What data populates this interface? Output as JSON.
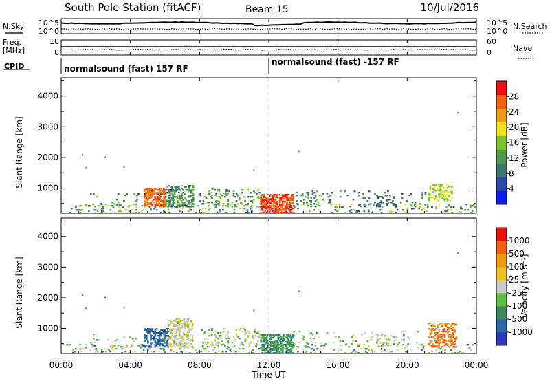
{
  "header": {
    "station": "South Pole Station (fitACF)",
    "beam": "Beam 15",
    "date": "10/Jul/2016"
  },
  "summary_panels": {
    "nsky": {
      "label": "N.Sky",
      "ticks": [
        "10^5",
        "10^0"
      ]
    },
    "nsearch": {
      "label": "N.Search",
      "ticks": [
        "10^5",
        "10^0"
      ]
    },
    "freq": {
      "label_line1": "Freq.",
      "label_line2": "[MHz]",
      "ticks": [
        "18",
        "8"
      ]
    },
    "nave": {
      "label": "Nave",
      "ticks": [
        "60",
        "0"
      ]
    },
    "cpid": {
      "label": "CPID",
      "segments": [
        {
          "text": "normalsound (fast) 157 RF",
          "start_hour": 0
        },
        {
          "text": "normalsound (fast) -157 RF",
          "start_hour": 12
        }
      ]
    }
  },
  "chart_data": [
    {
      "type": "heatmap",
      "name": "power",
      "ylabel": "Slant Range [km]",
      "x_range_hours": [
        0,
        24
      ],
      "ylim": [
        180,
        4600
      ],
      "yticks": [
        1000,
        2000,
        3000,
        4000
      ],
      "colorbar": {
        "label": "Power [dB]",
        "range": [
          0,
          32
        ],
        "ticks": [
          "4",
          "8",
          "12",
          "16",
          "20",
          "24",
          "28"
        ],
        "colors": [
          "#0a1ef0",
          "#2a4aaa",
          "#3a7a6a",
          "#4a9a48",
          "#7ac430",
          "#f0e020",
          "#f09a10",
          "#f06010",
          "#f01010"
        ]
      },
      "clusters": [
        {
          "t": [
            0.3,
            23.9
          ],
          "r": [
            180,
            480
          ],
          "d": 0.12,
          "v": [
            4,
            22
          ]
        },
        {
          "t": [
            4.8,
            6.0
          ],
          "r": [
            380,
            980
          ],
          "d": 0.62,
          "v": [
            22,
            30
          ]
        },
        {
          "t": [
            6.0,
            7.6
          ],
          "r": [
            380,
            1100
          ],
          "d": 0.42,
          "v": [
            6,
            16
          ]
        },
        {
          "t": [
            11.5,
            13.4
          ],
          "r": [
            180,
            780
          ],
          "d": 0.62,
          "v": [
            24,
            31
          ]
        },
        {
          "t": [
            8.0,
            11.5
          ],
          "r": [
            380,
            1000
          ],
          "d": 0.18,
          "v": [
            6,
            18
          ]
        },
        {
          "t": [
            13.4,
            15.5
          ],
          "r": [
            380,
            900
          ],
          "d": 0.16,
          "v": [
            6,
            16
          ]
        },
        {
          "t": [
            18.2,
            19.3
          ],
          "r": [
            380,
            780
          ],
          "d": 0.22,
          "v": [
            4,
            12
          ]
        },
        {
          "t": [
            21.2,
            22.6
          ],
          "r": [
            580,
            1100
          ],
          "d": 0.35,
          "v": [
            14,
            20
          ]
        },
        {
          "t": [
            1.5,
            4.5
          ],
          "r": [
            380,
            800
          ],
          "d": 0.06,
          "v": [
            4,
            16
          ]
        },
        {
          "t": [
            15.5,
            21.0
          ],
          "r": [
            380,
            900
          ],
          "d": 0.05,
          "v": [
            4,
            12
          ]
        }
      ]
    },
    {
      "type": "heatmap",
      "name": "velocity",
      "ylabel": "Slant Range [km]",
      "xlabel": "Time UT",
      "x_range_hours": [
        0,
        24
      ],
      "xticks": [
        "00:00",
        "04:00",
        "08:00",
        "12:00",
        "16:00",
        "20:00",
        "00:00"
      ],
      "ylim": [
        180,
        4600
      ],
      "yticks": [
        1000,
        2000,
        3000,
        4000
      ],
      "colorbar": {
        "label": "Velocity [m s⁻¹]",
        "ticks": [
          "1000",
          "500",
          "100",
          "25",
          "-25",
          "-100",
          "-500",
          "-1000"
        ],
        "colors": [
          "#2a3ac0",
          "#2a6aaa",
          "#3a8a5a",
          "#60c040",
          "#c8c8c8",
          "#f0c020",
          "#f09a10",
          "#f06010",
          "#f01010"
        ]
      },
      "clusters": [
        {
          "t": [
            0.3,
            23.9
          ],
          "r": [
            180,
            480
          ],
          "d": 0.1,
          "v": [
            1,
            5
          ]
        },
        {
          "t": [
            4.8,
            6.2
          ],
          "r": [
            380,
            980
          ],
          "d": 0.55,
          "v": [
            0,
            2
          ]
        },
        {
          "t": [
            6.2,
            7.6
          ],
          "r": [
            380,
            1300
          ],
          "d": 0.45,
          "v": [
            3,
            5
          ]
        },
        {
          "t": [
            11.5,
            13.4
          ],
          "r": [
            180,
            780
          ],
          "d": 0.6,
          "v": [
            1,
            3
          ]
        },
        {
          "t": [
            8.0,
            11.5
          ],
          "r": [
            380,
            1000
          ],
          "d": 0.16,
          "v": [
            2,
            5
          ]
        },
        {
          "t": [
            13.4,
            15.5
          ],
          "r": [
            380,
            900
          ],
          "d": 0.14,
          "v": [
            2,
            4
          ]
        },
        {
          "t": [
            18.2,
            19.3
          ],
          "r": [
            380,
            780
          ],
          "d": 0.2,
          "v": [
            3,
            5
          ]
        },
        {
          "t": [
            21.2,
            22.8
          ],
          "r": [
            380,
            1150
          ],
          "d": 0.45,
          "v": [
            6,
            7
          ]
        },
        {
          "t": [
            1.5,
            4.5
          ],
          "r": [
            380,
            800
          ],
          "d": 0.06,
          "v": [
            2,
            5
          ]
        },
        {
          "t": [
            15.5,
            21.0
          ],
          "r": [
            380,
            900
          ],
          "d": 0.05,
          "v": [
            2,
            5
          ]
        }
      ]
    }
  ]
}
